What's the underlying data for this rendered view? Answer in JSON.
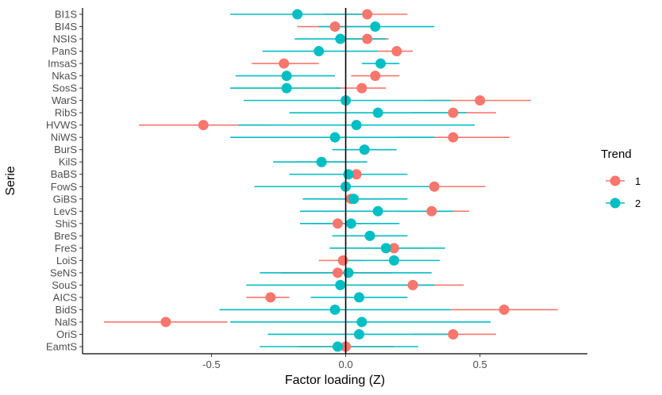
{
  "chart_data": {
    "type": "scatter",
    "xlabel": "Factor loading (Z)",
    "ylabel": "Serie",
    "xlim": [
      -0.98,
      0.9
    ],
    "xticks": [
      -0.5,
      0.0,
      0.5
    ],
    "xtick_labels": [
      "-0.5",
      "0.0",
      "0.5"
    ],
    "reference_line_x": 0,
    "grid": false,
    "legend": {
      "title": "Trend",
      "placement": "right"
    },
    "categories": [
      "BI1S",
      "BI4S",
      "NSIS",
      "PanS",
      "ImsaS",
      "NkaS",
      "SosS",
      "WarS",
      "RibS",
      "HVWS",
      "NiWS",
      "BurS",
      "KilS",
      "BaBS",
      "FowS",
      "GiBS",
      "LevS",
      "ShiS",
      "BreS",
      "FreS",
      "LoiS",
      "SeNS",
      "SouS",
      "AICS",
      "BidS",
      "NalS",
      "OriS",
      "EamtS"
    ],
    "series": [
      {
        "name": "1",
        "color": "#F8766D",
        "estimate": [
          0.08,
          -0.04,
          0.08,
          0.19,
          -0.23,
          0.11,
          0.06,
          0.5,
          0.4,
          -0.53,
          0.4,
          0.07,
          -0.09,
          0.04,
          0.33,
          0.02,
          0.32,
          -0.03,
          0.09,
          0.18,
          -0.01,
          -0.03,
          0.25,
          -0.28,
          0.59,
          -0.67,
          0.4,
          0.0
        ],
        "lower": [
          -0.08,
          -0.18,
          -0.02,
          0.12,
          -0.35,
          0.02,
          -0.04,
          0.31,
          0.25,
          -0.77,
          0.19,
          0.03,
          -0.19,
          -0.07,
          0.15,
          -0.1,
          0.19,
          -0.13,
          0.03,
          0.06,
          -0.1,
          -0.24,
          0.05,
          -0.37,
          0.39,
          -0.9,
          0.25,
          -0.18
        ],
        "upper": [
          0.23,
          0.11,
          0.16,
          0.25,
          -0.1,
          0.2,
          0.15,
          0.69,
          0.56,
          -0.3,
          0.61,
          0.12,
          0.01,
          0.16,
          0.52,
          0.14,
          0.46,
          0.06,
          0.15,
          0.29,
          0.07,
          0.17,
          0.44,
          -0.21,
          0.79,
          -0.44,
          0.56,
          0.18
        ]
      },
      {
        "name": "2",
        "color": "#00BFC4",
        "estimate": [
          -0.18,
          0.11,
          -0.02,
          -0.1,
          0.13,
          -0.22,
          -0.22,
          0.0,
          0.12,
          0.04,
          -0.04,
          0.07,
          -0.09,
          0.01,
          0.0,
          0.03,
          0.12,
          0.02,
          0.09,
          0.15,
          0.18,
          0.01,
          -0.02,
          0.05,
          -0.04,
          0.06,
          0.05,
          -0.03
        ],
        "lower": [
          -0.43,
          -0.1,
          -0.19,
          -0.31,
          0.06,
          -0.41,
          -0.43,
          -0.38,
          -0.21,
          -0.4,
          -0.43,
          -0.05,
          -0.27,
          -0.21,
          -0.34,
          -0.16,
          -0.17,
          -0.17,
          -0.05,
          -0.06,
          0.0,
          -0.32,
          -0.37,
          -0.13,
          -0.47,
          -0.43,
          -0.29,
          -0.32
        ],
        "upper": [
          0.06,
          0.33,
          0.15,
          0.12,
          0.2,
          -0.04,
          -0.02,
          0.39,
          0.45,
          0.48,
          0.33,
          0.19,
          0.08,
          0.23,
          0.34,
          0.23,
          0.4,
          0.2,
          0.23,
          0.37,
          0.35,
          0.32,
          0.33,
          0.23,
          0.39,
          0.54,
          0.38,
          0.27
        ]
      }
    ]
  }
}
